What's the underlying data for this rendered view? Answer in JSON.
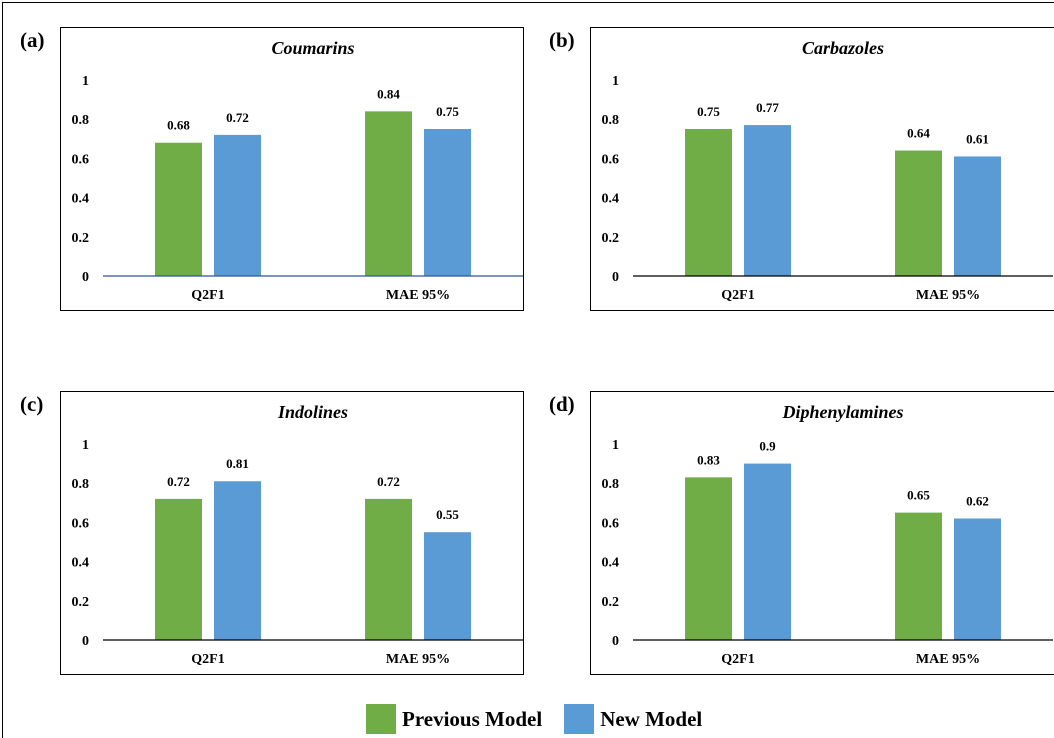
{
  "colors": {
    "previous": "#70AD47",
    "new": "#5B9BD5",
    "axis": "#2F5597"
  },
  "legend": [
    {
      "label": "Previous Model",
      "color": "#70AD47"
    },
    {
      "label": "New Model",
      "color": "#5B9BD5"
    }
  ],
  "panels": [
    {
      "letter": "(a)"
    },
    {
      "letter": "(b)"
    },
    {
      "letter": "(c)"
    },
    {
      "letter": "(d)"
    }
  ],
  "chart_data": [
    {
      "type": "bar",
      "title": "Coumarins",
      "categories": [
        "Q2F1",
        "MAE 95%"
      ],
      "series": [
        {
          "name": "Previous Model",
          "values": [
            0.68,
            0.84
          ]
        },
        {
          "name": "New Model",
          "values": [
            0.72,
            0.75
          ]
        }
      ],
      "ylim": [
        0,
        1
      ],
      "yticks": [
        "0",
        "0.2",
        "0.4",
        "0.6",
        "0.8",
        "1"
      ],
      "data_labels": [
        [
          "0.68",
          "0.84"
        ],
        [
          "0.72",
          "0.75"
        ]
      ],
      "grid": false
    },
    {
      "type": "bar",
      "title": "Carbazoles",
      "categories": [
        "Q2F1",
        "MAE 95%"
      ],
      "series": [
        {
          "name": "Previous Model",
          "values": [
            0.75,
            0.64
          ]
        },
        {
          "name": "New Model",
          "values": [
            0.77,
            0.61
          ]
        }
      ],
      "ylim": [
        0,
        1
      ],
      "yticks": [
        "0",
        "0.2",
        "0.4",
        "0.6",
        "0.8",
        "1"
      ],
      "data_labels": [
        [
          "0.75",
          "0.64"
        ],
        [
          "0.77",
          "0.61"
        ]
      ],
      "grid": false
    },
    {
      "type": "bar",
      "title": "Indolines",
      "categories": [
        "Q2F1",
        "MAE 95%"
      ],
      "series": [
        {
          "name": "Previous Model",
          "values": [
            0.72,
            0.72
          ]
        },
        {
          "name": "New Model",
          "values": [
            0.81,
            0.55
          ]
        }
      ],
      "ylim": [
        0,
        1
      ],
      "yticks": [
        "0",
        "0.2",
        "0.4",
        "0.6",
        "0.8",
        "1"
      ],
      "data_labels": [
        [
          "0.72",
          "0.72"
        ],
        [
          "0.81",
          "0.55"
        ]
      ],
      "grid": false
    },
    {
      "type": "bar",
      "title": "Diphenylamines",
      "categories": [
        "Q2F1",
        "MAE 95%"
      ],
      "series": [
        {
          "name": "Previous Model",
          "values": [
            0.83,
            0.65
          ]
        },
        {
          "name": "New Model",
          "values": [
            0.9,
            0.62
          ]
        }
      ],
      "ylim": [
        0,
        1
      ],
      "yticks": [
        "0",
        "0.2",
        "0.4",
        "0.6",
        "0.8",
        "1"
      ],
      "data_labels": [
        [
          "0.83",
          "0.65"
        ],
        [
          "0.9",
          "0.62"
        ]
      ],
      "grid": false
    }
  ]
}
